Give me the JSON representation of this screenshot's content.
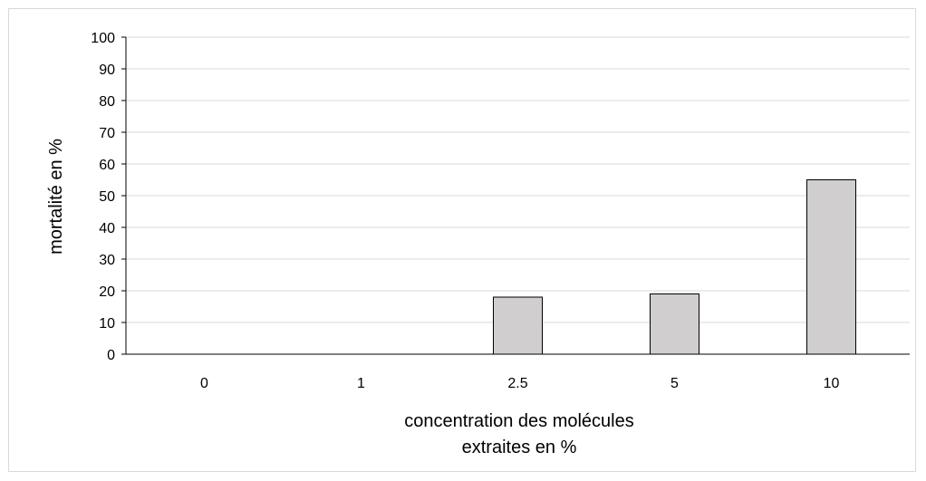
{
  "chart_data": {
    "type": "bar",
    "title": "",
    "categories": [
      "0",
      "1",
      "2.5",
      "5",
      "10"
    ],
    "values": [
      0,
      0,
      18,
      19,
      55
    ],
    "ylim": [
      0,
      100
    ],
    "yticks": [
      "0",
      "10",
      "20",
      "30",
      "40",
      "50",
      "60",
      "70",
      "80",
      "90",
      "100"
    ],
    "ylabel": "mortalité en %",
    "xlabel_lines": [
      "concentration des molécules",
      "extraites en %"
    ],
    "grid": true,
    "legend": "none",
    "colors": {
      "bar_fill": "#d0cece",
      "bar_stroke": "#000000",
      "grid": "#d9d9d9",
      "axis": "#000000"
    }
  }
}
